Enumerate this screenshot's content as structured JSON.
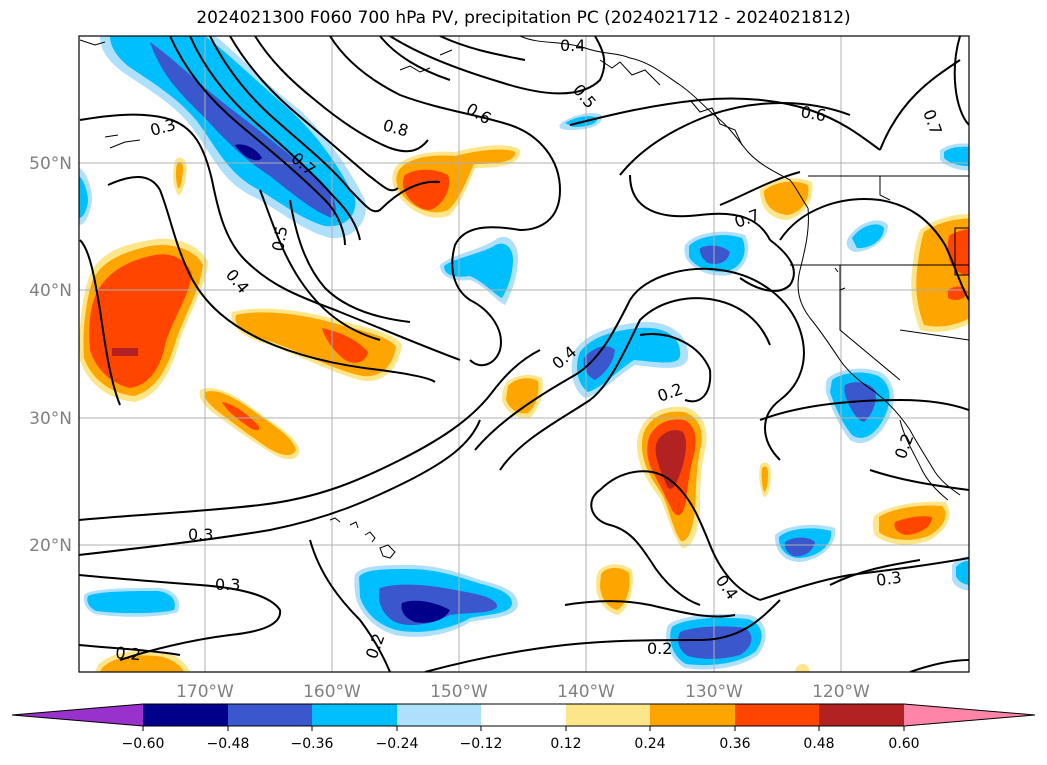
{
  "title": "2024021300 F060 700 hPa PV, precipitation PC (2024021712 - 2024021812)",
  "lon_labels": [
    "170°W",
    "160°W",
    "150°W",
    "140°W",
    "130°W",
    "120°W"
  ],
  "lat_labels": [
    "50°N",
    "40°N",
    "30°N",
    "20°N"
  ],
  "contour_labels": {
    "c1": "0.4",
    "c2": "0.5",
    "c3": "0.6",
    "c4": "0.8",
    "c5": "0.7",
    "c6": "0.3",
    "c7": "0.5",
    "c8": "0.4",
    "c9": "0.6",
    "c10": "0.7",
    "c11": "0.7",
    "c12": "0.4",
    "c13": "0.2",
    "c14": "0.3",
    "c15": "0.3",
    "c16": "0.2",
    "c17": "0.2",
    "c18": "0.4",
    "c19": "0.2",
    "c20": "0.3",
    "c21": "0.2"
  },
  "colorbar": {
    "colors": [
      "#9932cc",
      "#00008b",
      "#3a57cd",
      "#00bfff",
      "#aee0fb",
      "#ffffff",
      "#fde68a",
      "#ffa500",
      "#ff4500",
      "#b22222",
      "#ff85a8"
    ],
    "tick_labels": [
      "−0.60",
      "−0.48",
      "−0.36",
      "−0.24",
      "−0.12",
      "0.12",
      "0.24",
      "0.36",
      "0.48",
      "0.60"
    ]
  },
  "field_colors": {
    "light_blue": "#aee0fb",
    "blue": "#00bfff",
    "royal_blue": "#3a57cd",
    "navy": "#00008b",
    "yellow": "#fde68a",
    "orange": "#ffa500",
    "orange_red": "#ff4500",
    "firebrick": "#b22222",
    "pink": "#ff85a8",
    "purple": "#9932cc"
  }
}
